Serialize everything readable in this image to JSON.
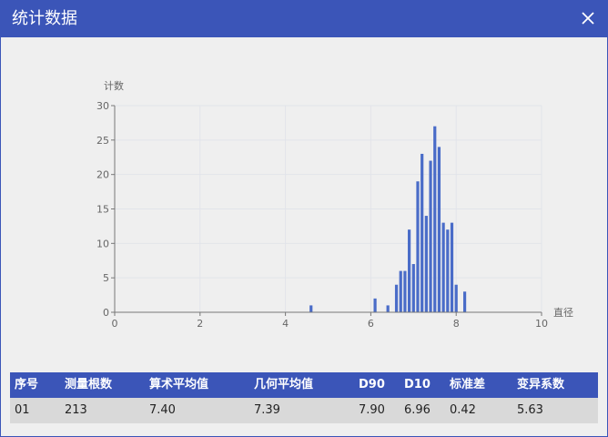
{
  "dialog": {
    "title": "统计数据",
    "close_icon": "close-icon"
  },
  "chart_data": {
    "type": "bar",
    "xlabel": "直径",
    "ylabel": "计数",
    "xlim": [
      0,
      10
    ],
    "ylim": [
      0,
      30
    ],
    "xticks": [
      "0",
      "2",
      "4",
      "6",
      "8",
      "10"
    ],
    "yticks": [
      "0",
      "5",
      "10",
      "15",
      "20",
      "25",
      "30"
    ],
    "grid": true,
    "bar_color": "#4a6cc8",
    "x": [
      4.6,
      6.1,
      6.4,
      6.6,
      6.7,
      6.8,
      6.9,
      7.0,
      7.1,
      7.2,
      7.3,
      7.4,
      7.5,
      7.6,
      7.7,
      7.8,
      7.9,
      8.0,
      8.2
    ],
    "values": [
      1,
      2,
      1,
      4,
      6,
      6,
      12,
      7,
      19,
      23,
      14,
      22,
      27,
      24,
      13,
      12,
      13,
      4,
      3
    ]
  },
  "table": {
    "headers": [
      "序号",
      "测量根数",
      "算术平均值",
      "几何平均值",
      "D90",
      "D10",
      "标准差",
      "变异系数"
    ],
    "rows": [
      [
        "01",
        "213",
        "7.40",
        "7.39",
        "7.90",
        "6.96",
        "0.42",
        "5.63"
      ]
    ]
  }
}
